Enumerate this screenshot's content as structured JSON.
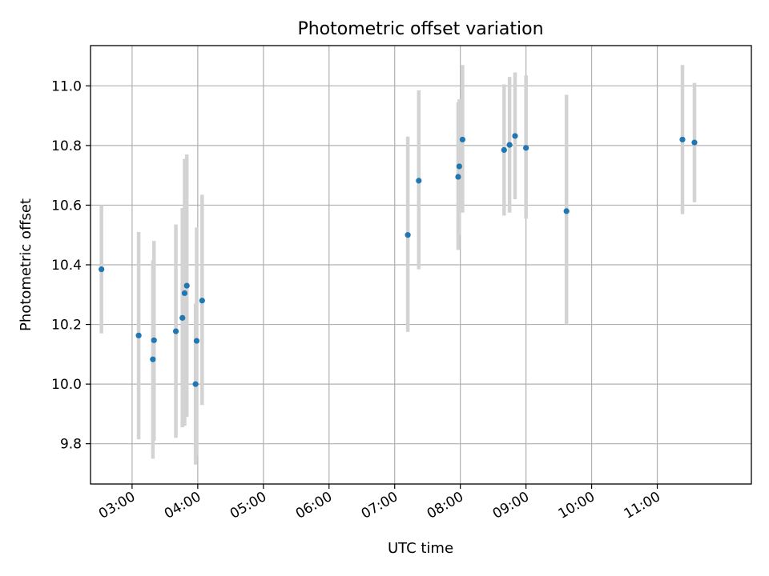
{
  "chart_data": {
    "type": "scatter",
    "title": "Photometric offset variation",
    "xlabel": "UTC time",
    "ylabel": "Photometric offset",
    "xlim": [
      "02:22",
      "12:26"
    ],
    "ylim": [
      9.665,
      11.135
    ],
    "x_ticks": [
      "03:00",
      "04:00",
      "05:00",
      "06:00",
      "07:00",
      "08:00",
      "09:00",
      "10:00",
      "11:00"
    ],
    "y_ticks": [
      "9.8",
      "10.0",
      "10.2",
      "10.4",
      "10.6",
      "10.8",
      "11.0"
    ],
    "grid": true,
    "colors": {
      "point": "#1f77b4",
      "errorbar": "#d3d3d3",
      "grid": "#b0b0b0"
    },
    "series": [
      {
        "points": [
          {
            "x": "02:32",
            "y": 10.385,
            "yerr": [
              10.17,
              10.6
            ]
          },
          {
            "x": "03:06",
            "y": 10.163,
            "yerr": [
              9.815,
              10.51
            ]
          },
          {
            "x": "03:19",
            "y": 10.083,
            "yerr": [
              9.75,
              10.415
            ]
          },
          {
            "x": "03:20",
            "y": 10.147,
            "yerr": [
              9.81,
              10.48
            ]
          },
          {
            "x": "03:40",
            "y": 10.177,
            "yerr": [
              9.82,
              10.535
            ]
          },
          {
            "x": "03:46",
            "y": 10.222,
            "yerr": [
              9.855,
              10.59
            ]
          },
          {
            "x": "03:48",
            "y": 10.305,
            "yerr": [
              9.86,
              10.755
            ]
          },
          {
            "x": "03:50",
            "y": 10.33,
            "yerr": [
              9.89,
              10.77
            ]
          },
          {
            "x": "03:58",
            "y": 10.0,
            "yerr": [
              9.73,
              10.27
            ]
          },
          {
            "x": "03:59",
            "y": 10.145,
            "yerr": [
              9.76,
              10.525
            ]
          },
          {
            "x": "04:04",
            "y": 10.28,
            "yerr": [
              9.93,
              10.635
            ]
          },
          {
            "x": "07:12",
            "y": 10.5,
            "yerr": [
              10.175,
              10.83
            ]
          },
          {
            "x": "07:22",
            "y": 10.682,
            "yerr": [
              10.385,
              10.985
            ]
          },
          {
            "x": "07:58",
            "y": 10.695,
            "yerr": [
              10.45,
              10.945
            ]
          },
          {
            "x": "07:59",
            "y": 10.73,
            "yerr": [
              10.5,
              10.955
            ]
          },
          {
            "x": "08:02",
            "y": 10.82,
            "yerr": [
              10.575,
              11.07
            ]
          },
          {
            "x": "08:40",
            "y": 10.785,
            "yerr": [
              10.565,
              11.005
            ]
          },
          {
            "x": "08:45",
            "y": 10.802,
            "yerr": [
              10.575,
              11.03
            ]
          },
          {
            "x": "08:50",
            "y": 10.832,
            "yerr": [
              10.62,
              11.045
            ]
          },
          {
            "x": "09:00",
            "y": 10.792,
            "yerr": [
              10.555,
              11.035
            ]
          },
          {
            "x": "09:37",
            "y": 10.58,
            "yerr": [
              10.2,
              10.97
            ]
          },
          {
            "x": "11:23",
            "y": 10.82,
            "yerr": [
              10.57,
              11.07
            ]
          },
          {
            "x": "11:34",
            "y": 10.81,
            "yerr": [
              10.61,
              11.01
            ]
          }
        ]
      }
    ]
  }
}
